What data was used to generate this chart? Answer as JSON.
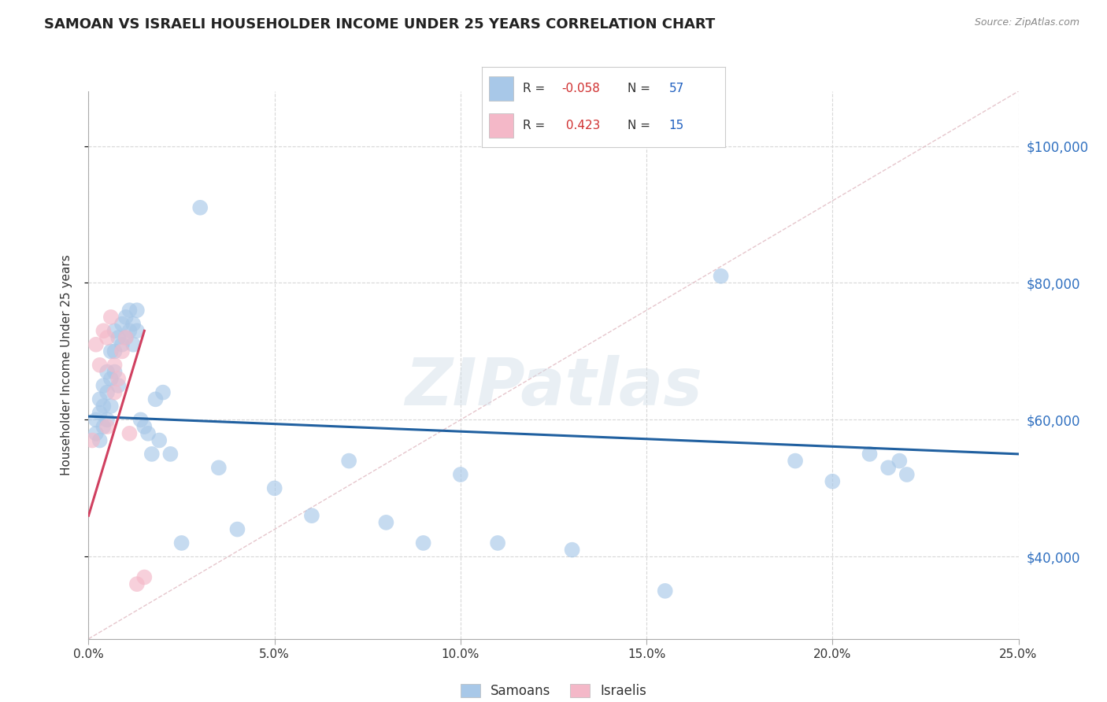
{
  "title": "SAMOAN VS ISRAELI HOUSEHOLDER INCOME UNDER 25 YEARS CORRELATION CHART",
  "source": "Source: ZipAtlas.com",
  "ylabel": "Householder Income Under 25 years",
  "yticks": [
    40000,
    60000,
    80000,
    100000
  ],
  "ytick_labels": [
    "$40,000",
    "$60,000",
    "$80,000",
    "$100,000"
  ],
  "xlim": [
    0.0,
    0.25
  ],
  "ylim": [
    28000,
    108000
  ],
  "watermark_text": "ZIPatlas",
  "samoan_color": "#a8c8e8",
  "israeli_color": "#f4b8c8",
  "samoan_line_color": "#2060a0",
  "israeli_line_color": "#d04060",
  "ref_line_color": "#e0b8c0",
  "grid_color": "#d8d8d8",
  "background_color": "#ffffff",
  "samoan_x": [
    0.002,
    0.002,
    0.003,
    0.003,
    0.003,
    0.004,
    0.004,
    0.004,
    0.005,
    0.005,
    0.005,
    0.006,
    0.006,
    0.006,
    0.007,
    0.007,
    0.007,
    0.008,
    0.008,
    0.009,
    0.009,
    0.01,
    0.01,
    0.011,
    0.011,
    0.012,
    0.012,
    0.013,
    0.013,
    0.014,
    0.015,
    0.016,
    0.017,
    0.018,
    0.019,
    0.02,
    0.022,
    0.025,
    0.03,
    0.035,
    0.04,
    0.05,
    0.06,
    0.07,
    0.08,
    0.09,
    0.1,
    0.11,
    0.13,
    0.155,
    0.17,
    0.19,
    0.2,
    0.21,
    0.215,
    0.218,
    0.22
  ],
  "samoan_y": [
    60000,
    58000,
    63000,
    61000,
    57000,
    65000,
    62000,
    59000,
    67000,
    64000,
    60000,
    70000,
    66000,
    62000,
    73000,
    70000,
    67000,
    72000,
    65000,
    74000,
    71000,
    75000,
    72000,
    76000,
    73000,
    74000,
    71000,
    76000,
    73000,
    60000,
    59000,
    58000,
    55000,
    63000,
    57000,
    64000,
    55000,
    42000,
    91000,
    53000,
    44000,
    50000,
    46000,
    54000,
    45000,
    42000,
    52000,
    42000,
    41000,
    35000,
    81000,
    54000,
    51000,
    55000,
    53000,
    54000,
    52000
  ],
  "israeli_x": [
    0.001,
    0.002,
    0.003,
    0.004,
    0.005,
    0.005,
    0.006,
    0.007,
    0.007,
    0.008,
    0.009,
    0.01,
    0.011,
    0.013,
    0.015
  ],
  "israeli_y": [
    57000,
    71000,
    68000,
    73000,
    59000,
    72000,
    75000,
    68000,
    64000,
    66000,
    70000,
    72000,
    58000,
    36000,
    37000
  ],
  "samoan_line_x": [
    0.0,
    0.25
  ],
  "samoan_line_y": [
    60500,
    55000
  ],
  "israeli_line_x": [
    0.0,
    0.015
  ],
  "israeli_line_y": [
    46000,
    73000
  ],
  "ref_line_x": [
    0.0,
    0.25
  ],
  "ref_line_y": [
    28000,
    108000
  ],
  "x_tick_positions": [
    0.0,
    0.05,
    0.1,
    0.15,
    0.2,
    0.25
  ],
  "x_tick_labels": [
    "0.0%",
    "5.0%",
    "10.0%",
    "15.0%",
    "20.0%",
    "25.0%"
  ],
  "legend_r1": "R = -0.058",
  "legend_n1": "N = 57",
  "legend_r2": "R =  0.423",
  "legend_n2": "N = 15"
}
